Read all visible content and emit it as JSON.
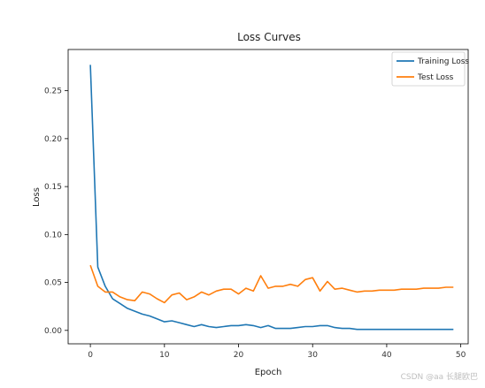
{
  "chart_data": {
    "type": "line",
    "title": "Loss Curves",
    "xlabel": "Epoch",
    "ylabel": "Loss",
    "xlim": [
      -3,
      51
    ],
    "ylim": [
      -0.014,
      0.293
    ],
    "xticks": [
      0,
      10,
      20,
      30,
      40,
      50
    ],
    "yticks": [
      0.0,
      0.05,
      0.1,
      0.15,
      0.2,
      0.25
    ],
    "ytick_labels": [
      "0.00",
      "0.05",
      "0.10",
      "0.15",
      "0.20",
      "0.25"
    ],
    "grid": false,
    "legend_position": "top-right",
    "x": [
      0,
      1,
      2,
      3,
      4,
      5,
      6,
      7,
      8,
      9,
      10,
      11,
      12,
      13,
      14,
      15,
      16,
      17,
      18,
      19,
      20,
      21,
      22,
      23,
      24,
      25,
      26,
      27,
      28,
      29,
      30,
      31,
      32,
      33,
      34,
      35,
      36,
      37,
      38,
      39,
      40,
      41,
      42,
      43,
      44,
      45,
      46,
      47,
      48,
      49
    ],
    "series": [
      {
        "name": "Training Loss",
        "color": "#1f77b4",
        "values": [
          0.277,
          0.066,
          0.046,
          0.033,
          0.028,
          0.023,
          0.02,
          0.017,
          0.015,
          0.012,
          0.009,
          0.01,
          0.008,
          0.006,
          0.004,
          0.006,
          0.004,
          0.003,
          0.004,
          0.005,
          0.005,
          0.006,
          0.005,
          0.003,
          0.005,
          0.002,
          0.002,
          0.002,
          0.003,
          0.004,
          0.004,
          0.005,
          0.005,
          0.003,
          0.002,
          0.002,
          0.001,
          0.001,
          0.001,
          0.001,
          0.001,
          0.001,
          0.001,
          0.001,
          0.001,
          0.001,
          0.001,
          0.001,
          0.001,
          0.001
        ]
      },
      {
        "name": "Test Loss",
        "color": "#ff7f0e",
        "values": [
          0.068,
          0.046,
          0.04,
          0.04,
          0.035,
          0.032,
          0.031,
          0.04,
          0.038,
          0.033,
          0.029,
          0.037,
          0.039,
          0.032,
          0.035,
          0.04,
          0.037,
          0.041,
          0.043,
          0.043,
          0.038,
          0.044,
          0.041,
          0.057,
          0.044,
          0.046,
          0.046,
          0.048,
          0.046,
          0.053,
          0.055,
          0.041,
          0.051,
          0.043,
          0.044,
          0.042,
          0.04,
          0.041,
          0.041,
          0.042,
          0.042,
          0.042,
          0.043,
          0.043,
          0.043,
          0.044,
          0.044,
          0.044,
          0.045,
          0.045
        ]
      }
    ]
  },
  "watermark": "CSDN @aa 长腿欧巴"
}
